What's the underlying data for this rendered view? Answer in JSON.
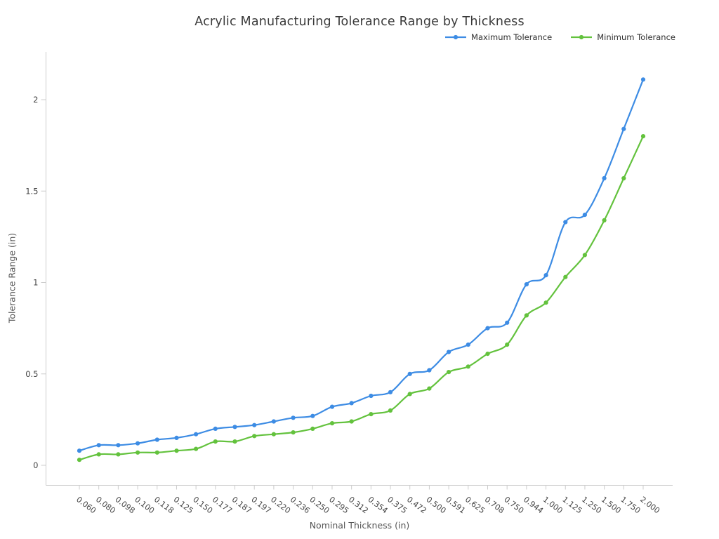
{
  "chart_data": {
    "type": "line",
    "title": "Acrylic Manufacturing Tolerance Range by Thickness",
    "xlabel": "Nominal Thickness (in)",
    "ylabel": "Tolerance Range (in)",
    "categories": [
      "0.060",
      "0.080",
      "0.098",
      "0.100",
      "0.118",
      "0.125",
      "0.150",
      "0.177",
      "0.187",
      "0.197",
      "0.220",
      "0.236",
      "0.250",
      "0.295",
      "0.312",
      "0.354",
      "0.375",
      "0.472",
      "0.500",
      "0.591",
      "0.625",
      "0.708",
      "0.750",
      "0.944",
      "1.000",
      "1.125",
      "1.250",
      "1.500",
      "1.750",
      "2.000"
    ],
    "series": [
      {
        "name": "Maximum Tolerance",
        "color": "#3d8ce4",
        "values": [
          0.08,
          0.11,
          0.11,
          0.12,
          0.14,
          0.15,
          0.17,
          0.2,
          0.21,
          0.22,
          0.24,
          0.26,
          0.27,
          0.32,
          0.34,
          0.38,
          0.4,
          0.5,
          0.52,
          0.62,
          0.66,
          0.75,
          0.78,
          0.99,
          1.04,
          1.33,
          1.37,
          1.57,
          1.84,
          2.11
        ]
      },
      {
        "name": "Minimum Tolerance",
        "color": "#63c23d",
        "values": [
          0.03,
          0.06,
          0.06,
          0.07,
          0.07,
          0.08,
          0.09,
          0.13,
          0.13,
          0.16,
          0.17,
          0.18,
          0.2,
          0.23,
          0.24,
          0.28,
          0.3,
          0.39,
          0.42,
          0.51,
          0.54,
          0.61,
          0.66,
          0.82,
          0.89,
          1.03,
          1.15,
          1.34,
          1.57,
          1.8
        ]
      }
    ],
    "yticks": [
      0,
      0.5,
      1,
      1.5,
      2
    ],
    "ylim": [
      -0.11,
      2.26
    ],
    "legend_position": "top-right",
    "grid": "off",
    "marker": "circle",
    "axis_color": "#cccccc",
    "tick_label_color": "#454545",
    "axis_label_color": "#555555",
    "title_color": "#3a3a3a"
  }
}
